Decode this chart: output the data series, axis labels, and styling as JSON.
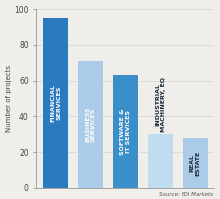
{
  "categories": [
    "FINANCIAL\nSERVICES",
    "BUSINESS\nSERVICES",
    "SOFTWARE &\nIT SERVICES",
    "INDUSTRIAL\nMACHINERY, EQ",
    "REAL\nESTATE"
  ],
  "values": [
    95,
    71,
    63,
    30,
    28
  ],
  "bar_colors": [
    "#2a7abf",
    "#aacce8",
    "#3a8fc8",
    "#c0ddf0",
    "#aacce8"
  ],
  "label_colors": [
    "#ffffff",
    "#ffffff",
    "#ffffff",
    "#1a2a3a",
    "#1a2a3a"
  ],
  "label_inside": [
    true,
    true,
    true,
    false,
    true
  ],
  "ylabel": "Number of projects",
  "ylim": [
    0,
    100
  ],
  "yticks": [
    0,
    20,
    40,
    60,
    80,
    100
  ],
  "source": "Source: fDI Markets",
  "background_color": "#f0eeea"
}
